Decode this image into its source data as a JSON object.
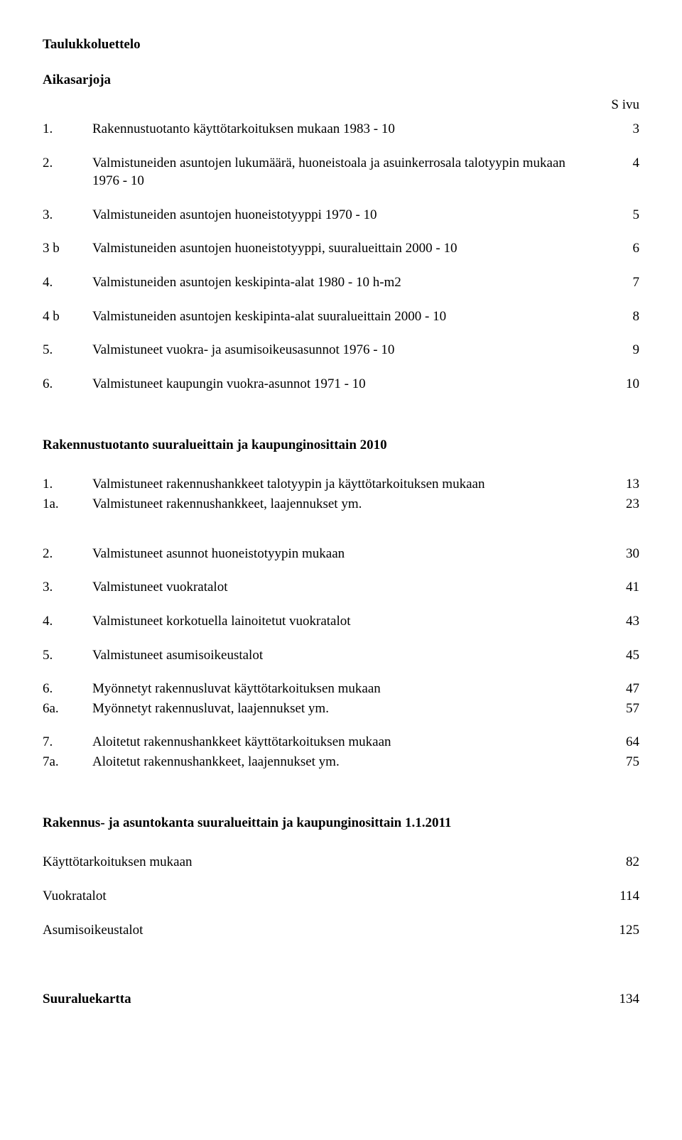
{
  "title": "Taulukkoluettelo",
  "subtitle": "Aikasarjoja",
  "page_col_label": "S ivu",
  "section_a": [
    {
      "n": "1.",
      "t": "Rakennustuotanto käyttötarkoituksen mukaan 1983 - 10",
      "p": "3"
    },
    {
      "n": "2.",
      "t": "Valmistuneiden asuntojen lukumäärä, huoneistoala ja asuinkerrosala talotyypin mukaan 1976 - 10",
      "p": "4"
    },
    {
      "n": "3.",
      "t": "Valmistuneiden asuntojen huoneistotyyppi 1970 - 10",
      "p": "5"
    },
    {
      "n": "3 b",
      "t": "Valmistuneiden asuntojen huoneistotyyppi, suuralueittain 2000 - 10",
      "p": "6"
    },
    {
      "n": "4.",
      "t": "Valmistuneiden asuntojen keskipinta-alat 1980 - 10 h-m2",
      "p": "7"
    },
    {
      "n": "4 b",
      "t": "Valmistuneiden asuntojen keskipinta-alat  suuralueittain  2000 - 10",
      "p": "8"
    },
    {
      "n": "5.",
      "t": "Valmistuneet vuokra- ja asumisoikeusasunnot 1976 - 10",
      "p": "9"
    },
    {
      "n": "6.",
      "t": "Valmistuneet kaupungin vuokra-asunnot 1971 - 10",
      "p": "10"
    }
  ],
  "section_b_title": "Rakennustuotanto suuralueittain ja kaupunginosittain 2010",
  "section_b_group1": [
    {
      "n": "1.",
      "t": "Valmistuneet rakennushankkeet talotyypin ja käyttötarkoituksen mukaan",
      "p": "13"
    },
    {
      "n": "1a.",
      "t": "Valmistuneet rakennushankkeet, laajennukset ym.",
      "p": "23"
    }
  ],
  "section_b_group2": [
    {
      "n": "2.",
      "t": "Valmistuneet asunnot huoneistotyypin mukaan",
      "p": "30"
    },
    {
      "n": "3.",
      "t": "Valmistuneet vuokratalot",
      "p": "41"
    },
    {
      "n": "4.",
      "t": "Valmistuneet korkotuella lainoitetut vuokratalot",
      "p": "43"
    },
    {
      "n": "5.",
      "t": "Valmistuneet asumisoikeustalot",
      "p": "45"
    }
  ],
  "section_b_group3": [
    {
      "n": "6.",
      "t": "Myönnetyt rakennusluvat käyttötarkoituksen mukaan",
      "p": "47"
    },
    {
      "n": "6a.",
      "t": "Myönnetyt rakennusluvat, laajennukset ym.",
      "p": "57"
    }
  ],
  "section_b_group4": [
    {
      "n": "7.",
      "t": "Aloitetut rakennushankkeet käyttötarkoituksen mukaan",
      "p": "64"
    },
    {
      "n": "7a.",
      "t": "Aloitetut rakennushankkeet, laajennukset ym.",
      "p": "75"
    }
  ],
  "section_c_title": "Rakennus- ja asuntokanta suuralueittain ja kaupunginosittain 1.1.2011",
  "section_c": [
    {
      "n": "",
      "t": "Käyttötarkoituksen mukaan",
      "p": "82"
    },
    {
      "n": "",
      "t": "Vuokratalot",
      "p": "114"
    },
    {
      "n": "",
      "t": "Asumisoikeustalot",
      "p": "125"
    }
  ],
  "footer_item": {
    "t": "Suuraluekartta",
    "p": "134"
  }
}
